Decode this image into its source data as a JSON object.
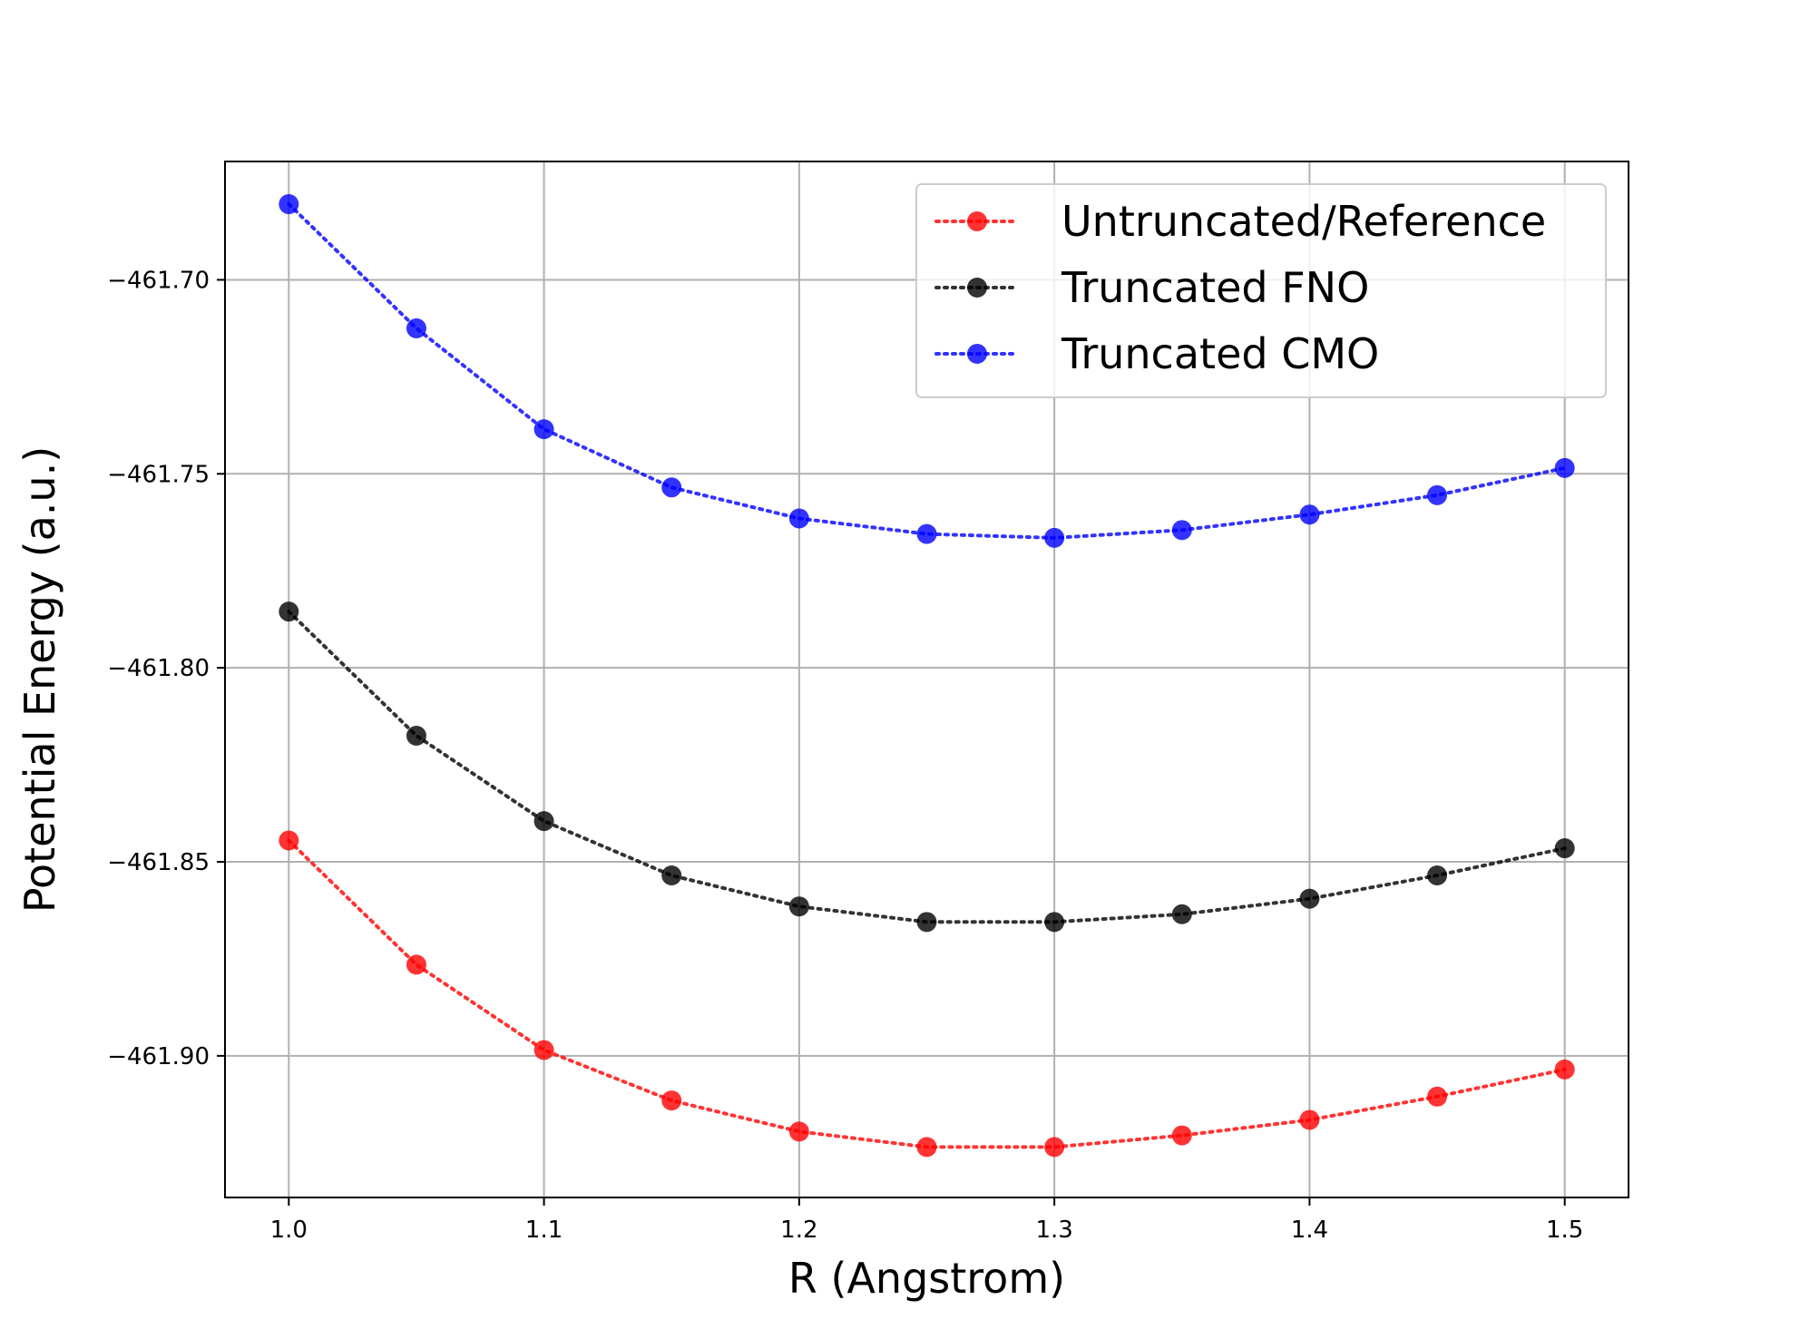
{
  "chart_data": {
    "type": "line",
    "title": "",
    "xlabel": "R (Angstrom)",
    "ylabel": "Potential Energy (a.u.)",
    "xlim": [
      0.975,
      1.525
    ],
    "ylim": [
      -461.9365,
      -461.6695
    ],
    "xticks": [
      1.0,
      1.1,
      1.2,
      1.3,
      1.4,
      1.5
    ],
    "xtick_labels": [
      "1.0",
      "1.1",
      "1.2",
      "1.3",
      "1.4",
      "1.5"
    ],
    "yticks": [
      -461.7,
      -461.75,
      -461.8,
      -461.85,
      -461.9
    ],
    "ytick_labels": [
      "−461.70",
      "−461.75",
      "−461.80",
      "−461.85",
      "−461.90"
    ],
    "grid": true,
    "legend_position": "top-right",
    "x": [
      1.0,
      1.05,
      1.1,
      1.15,
      1.2,
      1.25,
      1.3,
      1.35,
      1.4,
      1.45,
      1.5
    ],
    "series": [
      {
        "name": "Untruncated/Reference",
        "color": "#ff0000",
        "values": [
          -461.8445,
          -461.8765,
          -461.8985,
          -461.9115,
          -461.9195,
          -461.9235,
          -461.9235,
          -461.9205,
          -461.9165,
          -461.9105,
          -461.9035
        ]
      },
      {
        "name": "Truncated FNO",
        "color": "#000000",
        "values": [
          -461.7855,
          -461.8175,
          -461.8395,
          -461.8535,
          -461.8615,
          -461.8655,
          -461.8655,
          -461.8635,
          -461.8595,
          -461.8535,
          -461.8465
        ]
      },
      {
        "name": "Truncated CMO",
        "color": "#0000ff",
        "values": [
          -461.6805,
          -461.7125,
          -461.7385,
          -461.7535,
          -461.7615,
          -461.7655,
          -461.7665,
          -461.7645,
          -461.7605,
          -461.7555,
          -461.7485
        ]
      }
    ]
  }
}
